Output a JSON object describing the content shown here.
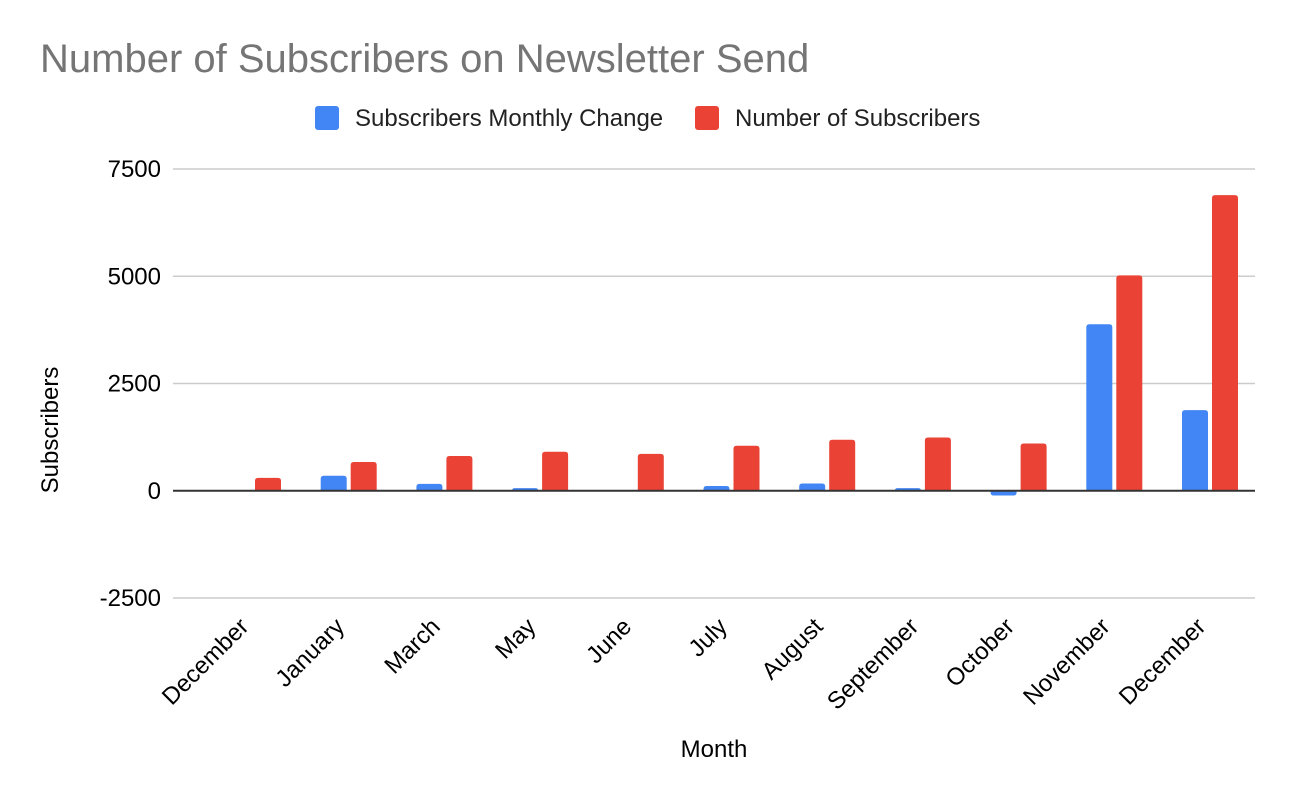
{
  "chart_data": {
    "type": "bar",
    "title": "Number of Subscribers on Newsletter Send",
    "xlabel": "Month",
    "ylabel": "Subscribers",
    "categories": [
      "December",
      "January",
      "March",
      "May",
      "June",
      "July",
      "August",
      "September",
      "October",
      "November",
      "December"
    ],
    "series": [
      {
        "name": "Subscribers Monthly Change",
        "color": "#4285f4",
        "values": [
          null,
          350,
          160,
          60,
          0,
          110,
          170,
          60,
          -110,
          3880,
          1880
        ]
      },
      {
        "name": "Number of Subscribers",
        "color": "#ea4335",
        "values": [
          300,
          670,
          810,
          910,
          860,
          1050,
          1190,
          1240,
          1100,
          5020,
          6890
        ]
      }
    ],
    "ylim": [
      -2500,
      7500
    ],
    "yticks": [
      7500,
      5000,
      2500,
      0,
      -2500
    ],
    "grid": true,
    "legend_position": "top"
  }
}
